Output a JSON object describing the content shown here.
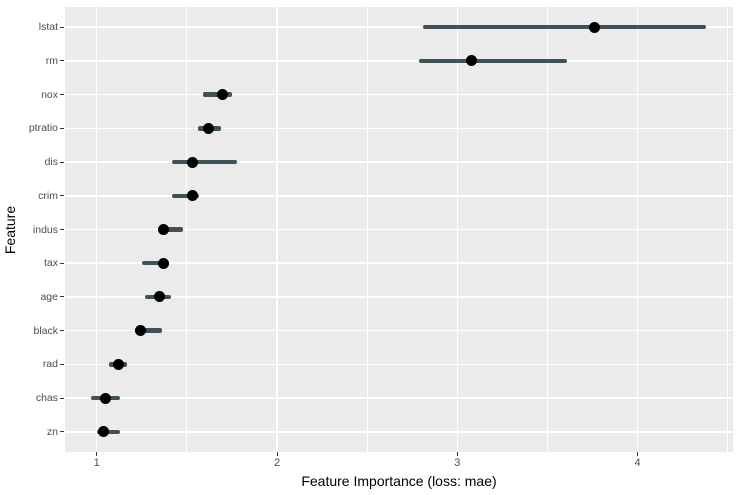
{
  "chart_data": {
    "type": "scatter",
    "subtype": "pointrange-horizontal",
    "title": "",
    "xlabel": "Feature Importance (loss: mae)",
    "ylabel": "Feature",
    "categories": [
      "lstat",
      "rm",
      "nox",
      "ptratio",
      "dis",
      "crim",
      "indus",
      "tax",
      "age",
      "black",
      "rad",
      "chas",
      "zn"
    ],
    "points": [
      {
        "feature": "lstat",
        "value": 3.76,
        "lo": 2.81,
        "hi": 4.38
      },
      {
        "feature": "rm",
        "value": 3.08,
        "lo": 2.79,
        "hi": 3.61
      },
      {
        "feature": "nox",
        "value": 1.7,
        "lo": 1.59,
        "hi": 1.75
      },
      {
        "feature": "ptratio",
        "value": 1.62,
        "lo": 1.56,
        "hi": 1.69
      },
      {
        "feature": "dis",
        "value": 1.53,
        "lo": 1.42,
        "hi": 1.78
      },
      {
        "feature": "crim",
        "value": 1.53,
        "lo": 1.42,
        "hi": 1.57
      },
      {
        "feature": "indus",
        "value": 1.37,
        "lo": 1.34,
        "hi": 1.48
      },
      {
        "feature": "tax",
        "value": 1.37,
        "lo": 1.25,
        "hi": 1.4
      },
      {
        "feature": "age",
        "value": 1.35,
        "lo": 1.27,
        "hi": 1.41
      },
      {
        "feature": "black",
        "value": 1.24,
        "lo": 1.21,
        "hi": 1.36
      },
      {
        "feature": "rad",
        "value": 1.12,
        "lo": 1.07,
        "hi": 1.17
      },
      {
        "feature": "chas",
        "value": 1.05,
        "lo": 0.97,
        "hi": 1.13
      },
      {
        "feature": "zn",
        "value": 1.04,
        "lo": 1.0,
        "hi": 1.13
      }
    ],
    "xlim": [
      0.824,
      4.529
    ],
    "x_major_ticks": [
      1,
      2,
      3,
      4
    ],
    "x_major_tick_labels": [
      "1",
      "2",
      "3",
      "4"
    ],
    "x_minor_ticks": [
      1.5,
      2.5,
      3.5,
      4.5
    ],
    "grid": true,
    "legend": "none",
    "colors": {
      "panel_bg": "#EBEBEB",
      "grid": "#FFFFFF",
      "bar": "#3F5257",
      "point": "#000000",
      "tick_text": "#4D4D4D",
      "tick_mark": "#333333",
      "axis_title": "#000000",
      "figure_bg": "#FFFFFF"
    }
  }
}
